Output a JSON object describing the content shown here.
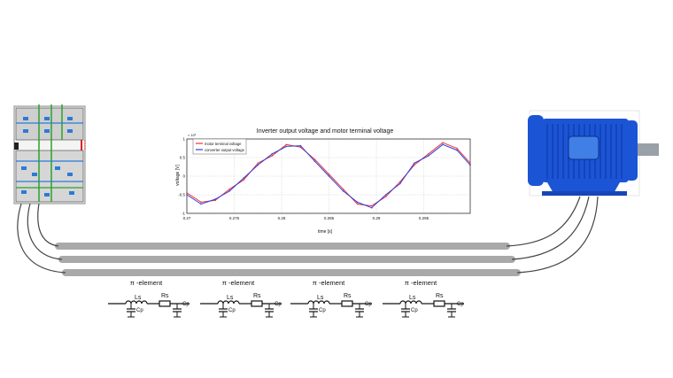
{
  "chart_data": {
    "type": "line",
    "title": "Inverter output voltage and motor terminal voltage",
    "xlabel": "time [s]",
    "ylabel": "voltage [V]",
    "xlim": [
      0.27,
      0.2999
    ],
    "ylim": [
      -1.0,
      1.0
    ],
    "y_scale_label": "× 10³",
    "x_tick_labels": [
      "0.27",
      "0.275",
      "0.28",
      "0.285",
      "0.29",
      "0.295"
    ],
    "y_tick_labels": [
      "1",
      "0.5",
      "0",
      "-0.5",
      "-1"
    ],
    "grid": true,
    "legend_position": "top-left",
    "series": [
      {
        "name": "motor terminal voltage",
        "color": "#e8323c",
        "x": [
          0.27,
          0.2715,
          0.273,
          0.2745,
          0.276,
          0.2775,
          0.279,
          0.2805,
          0.282,
          0.2835,
          0.285,
          0.2865,
          0.288,
          0.2895,
          0.291,
          0.2925,
          0.294,
          0.2955,
          0.297,
          0.2985,
          0.2999
        ],
        "y": [
          -0.45,
          -0.7,
          -0.65,
          -0.35,
          -0.1,
          0.35,
          0.55,
          0.85,
          0.78,
          0.45,
          0.05,
          -0.35,
          -0.75,
          -0.8,
          -0.55,
          -0.15,
          0.3,
          0.6,
          0.9,
          0.75,
          0.35
        ]
      },
      {
        "name": "converter output voltage",
        "color": "#2f3fd8",
        "x": [
          0.27,
          0.2715,
          0.273,
          0.2745,
          0.276,
          0.2775,
          0.279,
          0.2805,
          0.282,
          0.2835,
          0.285,
          0.2865,
          0.288,
          0.2895,
          0.291,
          0.2925,
          0.294,
          0.2955,
          0.297,
          0.2985,
          0.2999
        ],
        "y": [
          -0.5,
          -0.75,
          -0.62,
          -0.4,
          -0.05,
          0.3,
          0.6,
          0.8,
          0.82,
          0.4,
          0.0,
          -0.4,
          -0.7,
          -0.85,
          -0.5,
          -0.2,
          0.35,
          0.55,
          0.85,
          0.7,
          0.3
        ]
      }
    ]
  },
  "diagram": {
    "pi_labels": [
      "π -element",
      "π -element",
      "π -element",
      "π -element"
    ],
    "component_labels": {
      "inductor": "Ls",
      "resistor": "Rs",
      "capacitor": "Cp"
    },
    "cable_color": "#a9a9a9",
    "motor_color": "#1b55d6"
  }
}
